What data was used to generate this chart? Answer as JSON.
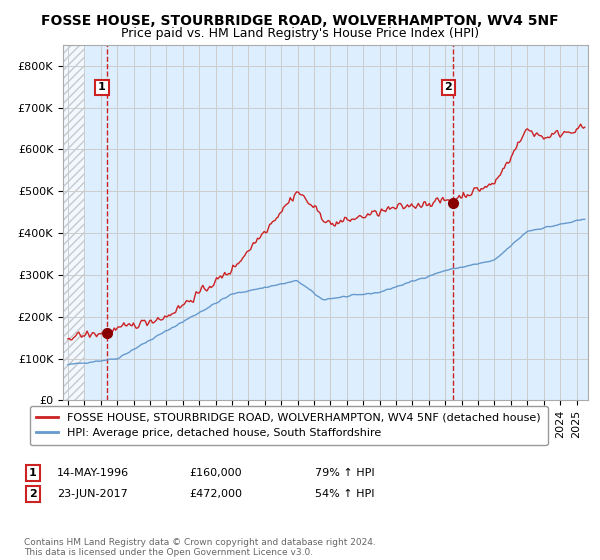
{
  "title": "FOSSE HOUSE, STOURBRIDGE ROAD, WOLVERHAMPTON, WV4 5NF",
  "subtitle": "Price paid vs. HM Land Registry's House Price Index (HPI)",
  "ylim": [
    0,
    850000
  ],
  "yticks": [
    0,
    100000,
    200000,
    300000,
    400000,
    500000,
    600000,
    700000,
    800000
  ],
  "ytick_labels": [
    "£0",
    "£100K",
    "£200K",
    "£300K",
    "£400K",
    "£500K",
    "£600K",
    "£700K",
    "£800K"
  ],
  "xlim_start": 1993.7,
  "xlim_end": 2025.7,
  "sale1_x": 1996.37,
  "sale1_y": 160000,
  "sale1_label": "1",
  "sale2_x": 2017.48,
  "sale2_y": 472000,
  "sale2_label": "2",
  "red_line_color": "#cc2222",
  "blue_line_color": "#6699cc",
  "sale_dot_color": "#880000",
  "dashed_vline_color": "#cc2222",
  "grid_color": "#cccccc",
  "chart_bg_color": "#ddeeff",
  "legend_line1": "FOSSE HOUSE, STOURBRIDGE ROAD, WOLVERHAMPTON, WV4 5NF (detached house)",
  "legend_line2": "HPI: Average price, detached house, South Staffordshire",
  "annotation1_date": "14-MAY-1996",
  "annotation1_price": "£160,000",
  "annotation1_hpi": "79% ↑ HPI",
  "annotation2_date": "23-JUN-2017",
  "annotation2_price": "£472,000",
  "annotation2_hpi": "54% ↑ HPI",
  "footer": "Contains HM Land Registry data © Crown copyright and database right 2024.\nThis data is licensed under the Open Government Licence v3.0.",
  "title_fontsize": 10,
  "subtitle_fontsize": 9,
  "tick_fontsize": 8,
  "legend_fontsize": 8
}
